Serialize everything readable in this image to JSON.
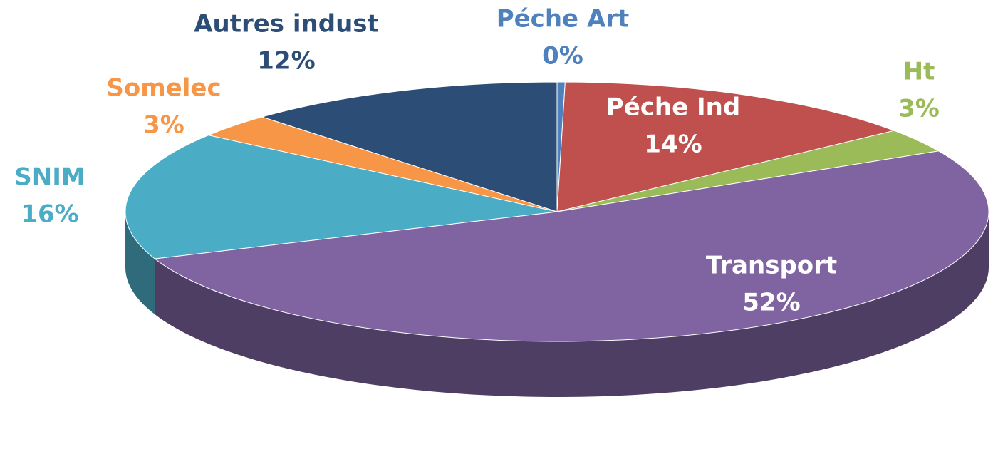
{
  "chart_data": {
    "type": "pie3d",
    "categories": [
      "Péche Art",
      "Péche Ind",
      "Ht",
      "Transport",
      "SNIM",
      "Somelec",
      "Autres indust"
    ],
    "values": [
      0.3,
      14,
      3,
      52,
      16,
      3,
      12
    ],
    "value_labels": [
      "0%",
      "14%",
      "3%",
      "52%",
      "16%",
      "3%",
      "12%"
    ],
    "colors": [
      "#4f81bd",
      "#c0504d",
      "#9bbb59",
      "#8064a2",
      "#4bacc6",
      "#f79646",
      "#2c4d75"
    ]
  }
}
